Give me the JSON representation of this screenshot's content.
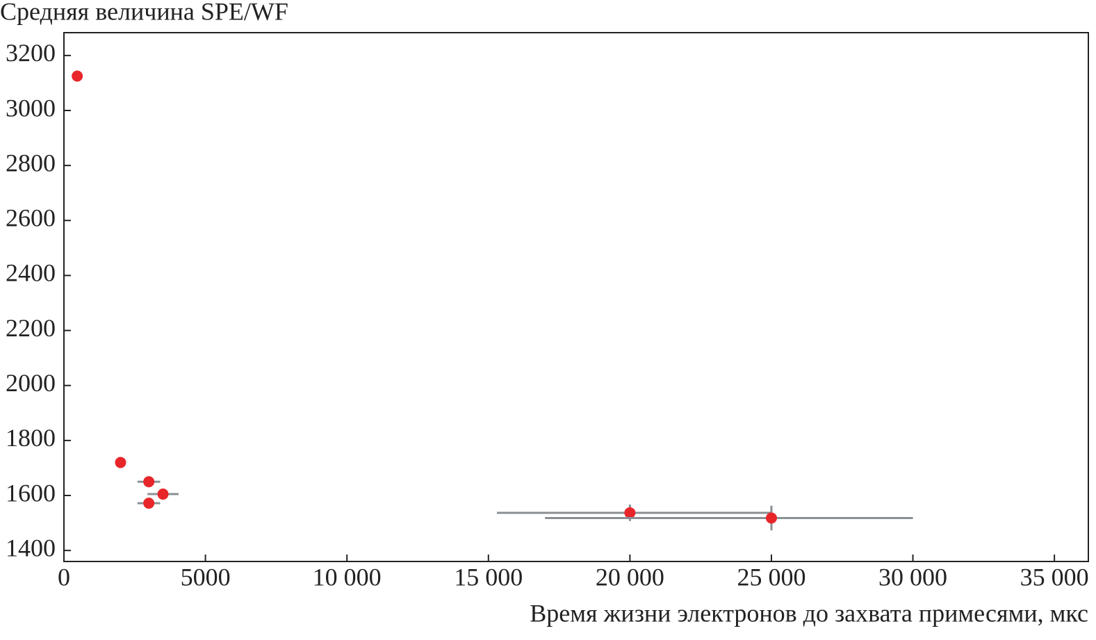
{
  "chart_data": {
    "type": "scatter",
    "title": "Средняя величина SPE/WF",
    "xlabel": "Время жизни электронов до захвата примесями, мкс",
    "x": [
      470,
      2000,
      3000,
      3500,
      3000,
      20000,
      25000
    ],
    "values": [
      3125,
      1720,
      1650,
      1605,
      1572,
      1537,
      1518
    ],
    "xerr": [
      null,
      null,
      [
        400,
        400
      ],
      [
        550,
        550
      ],
      [
        400,
        400
      ],
      [
        4700,
        5000
      ],
      [
        8000,
        5000
      ]
    ],
    "yerr": [
      null,
      null,
      null,
      null,
      null,
      [
        30,
        30
      ],
      [
        45,
        45
      ]
    ],
    "color": "#e8262a",
    "error_color": "#8a8f94",
    "xlim": [
      0,
      36200
    ],
    "ylim": [
      1360,
      3283
    ],
    "xticks": [
      0,
      5000,
      {
        "value": 10000,
        "label": "10 000"
      },
      {
        "value": 15000,
        "label": "15 000"
      },
      {
        "value": 20000,
        "label": "20 000"
      },
      {
        "value": 25000,
        "label": "25 000"
      },
      {
        "value": 30000,
        "label": "30 000"
      },
      {
        "value": 35000,
        "label": "35 000"
      }
    ],
    "yticks": [
      1400,
      1600,
      1800,
      2000,
      2200,
      2400,
      2600,
      2800,
      3000,
      3200
    ]
  }
}
